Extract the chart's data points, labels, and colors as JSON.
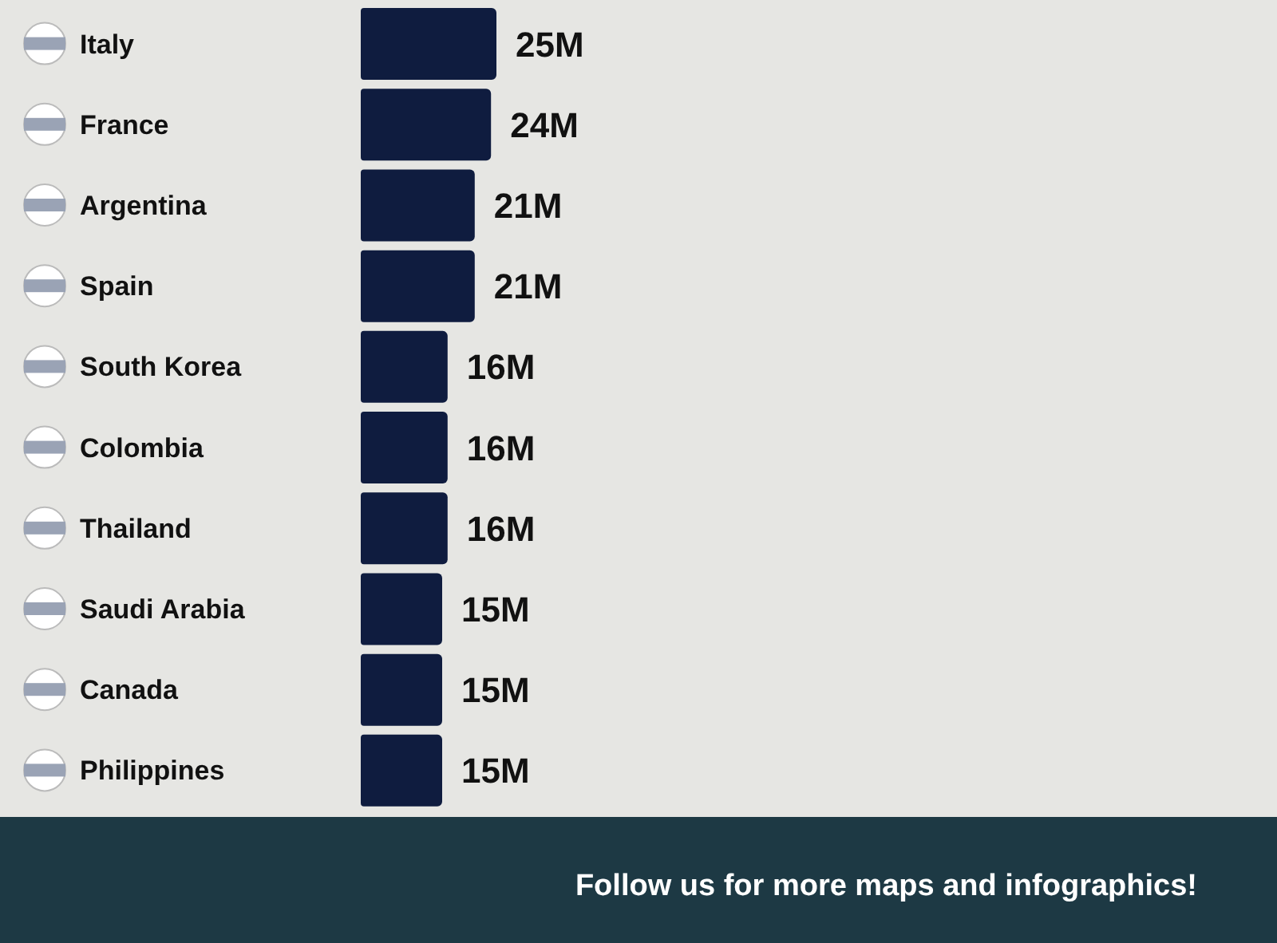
{
  "chart_data": {
    "type": "bar",
    "orientation": "horizontal",
    "categories": [
      "Italy",
      "France",
      "Argentina",
      "Spain",
      "South Korea",
      "Colombia",
      "Thailand",
      "Saudi Arabia",
      "Canada",
      "Philippines"
    ],
    "values": [
      25,
      24,
      21,
      21,
      16,
      16,
      16,
      15,
      15,
      15
    ],
    "value_labels": [
      "25M",
      "24M",
      "21M",
      "21M",
      "16M",
      "16M",
      "16M",
      "15M",
      "15M",
      "15M"
    ],
    "color": "#0f1c3f",
    "annotations": [
      "Follow us for more maps and infographics!"
    ]
  }
}
